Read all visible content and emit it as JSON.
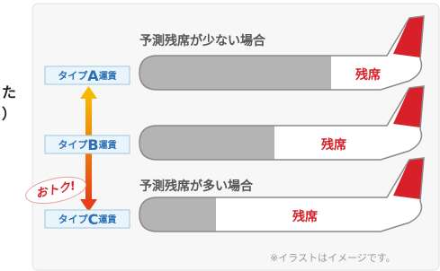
{
  "side_text": [
    "た",
    "）"
  ],
  "headings": {
    "few_seats": "予測残席が少ない場合",
    "many_seats": "予測残席が多い場合"
  },
  "fares": [
    {
      "prefix": "タイプ",
      "letter": "A",
      "suffix": "運賃"
    },
    {
      "prefix": "タイプ",
      "letter": "B",
      "suffix": "運賃"
    },
    {
      "prefix": "タイプ",
      "letter": "C",
      "suffix": "運賃"
    }
  ],
  "planes": [
    {
      "label": "残席"
    },
    {
      "label": "残席"
    },
    {
      "label": "残席"
    }
  ],
  "badge": "おトク!",
  "note": "※イラストはイメージです。"
}
